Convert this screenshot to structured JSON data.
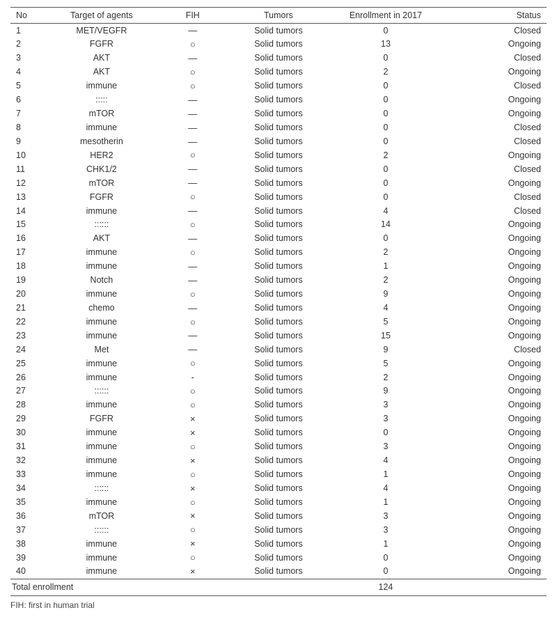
{
  "table": {
    "headers": {
      "no": "No",
      "target": "Target of agents",
      "fih": "FIH",
      "tumors": "Tumors",
      "enroll": "Enrollment in 2017",
      "status": "Status"
    },
    "rows": [
      {
        "no": "1",
        "target": "MET/VEGFR",
        "fih": "—",
        "tumors": "Solid tumors",
        "enroll": "0",
        "status": "Closed"
      },
      {
        "no": "2",
        "target": "FGFR",
        "fih": "○",
        "tumors": "Solid tumors",
        "enroll": "13",
        "status": "Ongoing"
      },
      {
        "no": "3",
        "target": "AKT",
        "fih": "—",
        "tumors": "Solid tumors",
        "enroll": "0",
        "status": "Closed"
      },
      {
        "no": "4",
        "target": "AKT",
        "fih": "○",
        "tumors": "Solid tumors",
        "enroll": "2",
        "status": "Ongoing"
      },
      {
        "no": "5",
        "target": "immune",
        "fih": "○",
        "tumors": "Solid tumors",
        "enroll": "0",
        "status": "Closed"
      },
      {
        "no": "6",
        "target": ":::::",
        "fih": "—",
        "tumors": "Solid tumors",
        "enroll": "0",
        "status": "Ongoing"
      },
      {
        "no": "7",
        "target": "mTOR",
        "fih": "—",
        "tumors": "Solid tumors",
        "enroll": "0",
        "status": "Ongoing"
      },
      {
        "no": "8",
        "target": "immune",
        "fih": "—",
        "tumors": "Solid tumors",
        "enroll": "0",
        "status": "Closed"
      },
      {
        "no": "9",
        "target": "mesotherin",
        "fih": "—",
        "tumors": "Solid tumors",
        "enroll": "0",
        "status": "Closed"
      },
      {
        "no": "10",
        "target": "HER2",
        "fih": "○",
        "tumors": "Solid tumors",
        "enroll": "2",
        "status": "Ongoing"
      },
      {
        "no": "11",
        "target": "CHK1/2",
        "fih": "—",
        "tumors": "Solid tumors",
        "enroll": "0",
        "status": "Closed"
      },
      {
        "no": "12",
        "target": "mTOR",
        "fih": "—",
        "tumors": "Solid tumors",
        "enroll": "0",
        "status": "Ongoing"
      },
      {
        "no": "13",
        "target": "FGFR",
        "fih": "○",
        "tumors": "Solid tumors",
        "enroll": "0",
        "status": "Closed"
      },
      {
        "no": "14",
        "target": "immune",
        "fih": "—",
        "tumors": "Solid tumors",
        "enroll": "4",
        "status": "Closed"
      },
      {
        "no": "15",
        "target": "::::::",
        "fih": "○",
        "tumors": "Solid tumors",
        "enroll": "14",
        "status": "Ongoing"
      },
      {
        "no": "16",
        "target": "AKT",
        "fih": "—",
        "tumors": "Solid tumors",
        "enroll": "0",
        "status": "Ongoing"
      },
      {
        "no": "17",
        "target": "immune",
        "fih": "○",
        "tumors": "Solid tumors",
        "enroll": "2",
        "status": "Ongoing"
      },
      {
        "no": "18",
        "target": "immune",
        "fih": "—",
        "tumors": "Solid tumors",
        "enroll": "1",
        "status": "Ongoing"
      },
      {
        "no": "19",
        "target": "Notch",
        "fih": "—",
        "tumors": "Solid tumors",
        "enroll": "2",
        "status": "Ongoing"
      },
      {
        "no": "20",
        "target": "immune",
        "fih": "○",
        "tumors": "Solid tumors",
        "enroll": "9",
        "status": "Ongoing"
      },
      {
        "no": "21",
        "target": "chemo",
        "fih": "—",
        "tumors": "Solid tumors",
        "enroll": "4",
        "status": "Ongoing"
      },
      {
        "no": "22",
        "target": "immune",
        "fih": "○",
        "tumors": "Solid tumors",
        "enroll": "5",
        "status": "Ongoing"
      },
      {
        "no": "23",
        "target": "immune",
        "fih": "—",
        "tumors": "Solid tumors",
        "enroll": "15",
        "status": "Ongoing"
      },
      {
        "no": "24",
        "target": "Met",
        "fih": "—",
        "tumors": "Solid tumors",
        "enroll": "9",
        "status": "Closed"
      },
      {
        "no": "25",
        "target": "immune",
        "fih": "○",
        "tumors": "Solid tumors",
        "enroll": "5",
        "status": "Ongoing"
      },
      {
        "no": "26",
        "target": "immune",
        "fih": "-",
        "tumors": "Solid tumors",
        "enroll": "2",
        "status": "Ongoing"
      },
      {
        "no": "27",
        "target": "::::::",
        "fih": "○",
        "tumors": "Solid tumors",
        "enroll": "9",
        "status": "Ongoing"
      },
      {
        "no": "28",
        "target": "immune",
        "fih": "○",
        "tumors": "Solid tumors",
        "enroll": "3",
        "status": "Ongoing"
      },
      {
        "no": "29",
        "target": "FGFR",
        "fih": "×",
        "tumors": "Solid tumors",
        "enroll": "3",
        "status": "Ongoing"
      },
      {
        "no": "30",
        "target": "immune",
        "fih": "×",
        "tumors": "Solid tumors",
        "enroll": "0",
        "status": "Ongoing"
      },
      {
        "no": "31",
        "target": "immune",
        "fih": "○",
        "tumors": "Solid tumors",
        "enroll": "3",
        "status": "Ongoing"
      },
      {
        "no": "32",
        "target": "immune",
        "fih": "×",
        "tumors": "Solid tumors",
        "enroll": "4",
        "status": "Ongoing"
      },
      {
        "no": "33",
        "target": "immune",
        "fih": "○",
        "tumors": "Solid tumors",
        "enroll": "1",
        "status": "Ongoing"
      },
      {
        "no": "34",
        "target": "::::::",
        "fih": "×",
        "tumors": "Solid tumors",
        "enroll": "4",
        "status": "Ongoing"
      },
      {
        "no": "35",
        "target": "immune",
        "fih": "○",
        "tumors": "Solid tumors",
        "enroll": "1",
        "status": "Ongoing"
      },
      {
        "no": "36",
        "target": "mTOR",
        "fih": "×",
        "tumors": "Solid tumors",
        "enroll": "3",
        "status": "Ongoing"
      },
      {
        "no": "37",
        "target": "::::::",
        "fih": "○",
        "tumors": "Solid tumors",
        "enroll": "3",
        "status": "Ongoing"
      },
      {
        "no": "38",
        "target": "immune",
        "fih": "×",
        "tumors": "Solid tumors",
        "enroll": "1",
        "status": "Ongoing"
      },
      {
        "no": "39",
        "target": "immune",
        "fih": "○",
        "tumors": "Solid tumors",
        "enroll": "0",
        "status": "Ongoing"
      },
      {
        "no": "40",
        "target": "immune",
        "fih": "×",
        "tumors": "Solid tumors",
        "enroll": "0",
        "status": "Ongoing"
      }
    ],
    "total": {
      "label": "Total enrollment",
      "value": "124"
    },
    "footnote": "FIH: first in human trial"
  }
}
